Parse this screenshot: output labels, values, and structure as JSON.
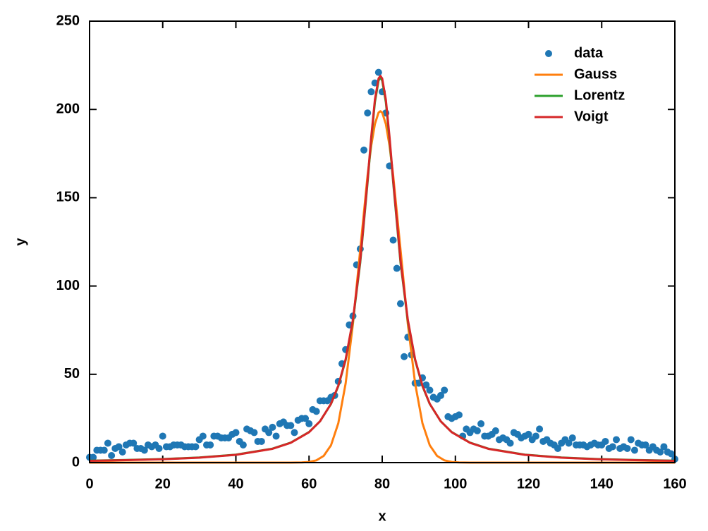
{
  "chart_data": {
    "type": "line",
    "xlabel": "x",
    "ylabel": "y",
    "xlim": [
      0,
      160
    ],
    "ylim": [
      0,
      250
    ],
    "xticks": [
      0,
      20,
      40,
      60,
      80,
      100,
      120,
      140,
      160
    ],
    "yticks": [
      0,
      50,
      100,
      150,
      200,
      250
    ],
    "legend": "upper right",
    "series": [
      {
        "name": "data",
        "type": "scatter",
        "color": "#1f77b4",
        "x": [
          0,
          1,
          2,
          3,
          4,
          5,
          6,
          7,
          8,
          9,
          10,
          11,
          12,
          13,
          14,
          15,
          16,
          17,
          18,
          19,
          20,
          21,
          22,
          23,
          24,
          25,
          26,
          27,
          28,
          29,
          30,
          31,
          32,
          33,
          34,
          35,
          36,
          37,
          38,
          39,
          40,
          41,
          42,
          43,
          44,
          45,
          46,
          47,
          48,
          49,
          50,
          51,
          52,
          53,
          54,
          55,
          56,
          57,
          58,
          59,
          60,
          61,
          62,
          63,
          64,
          65,
          66,
          67,
          68,
          69,
          70,
          71,
          72,
          73,
          74,
          75,
          76,
          77,
          78,
          79,
          80,
          81,
          82,
          83,
          84,
          85,
          86,
          87,
          88,
          89,
          90,
          91,
          92,
          93,
          94,
          95,
          96,
          97,
          98,
          99,
          100,
          101,
          102,
          103,
          104,
          105,
          106,
          107,
          108,
          109,
          110,
          111,
          112,
          113,
          114,
          115,
          116,
          117,
          118,
          119,
          120,
          121,
          122,
          123,
          124,
          125,
          126,
          127,
          128,
          129,
          130,
          131,
          132,
          133,
          134,
          135,
          136,
          137,
          138,
          139,
          140,
          141,
          142,
          143,
          144,
          145,
          146,
          147,
          148,
          149,
          150,
          151,
          152,
          153,
          154,
          155,
          156,
          157,
          158,
          159,
          160
        ],
        "values": [
          3,
          3,
          7,
          7,
          7,
          11,
          4,
          8,
          9,
          6,
          10,
          11,
          11,
          8,
          8,
          7,
          10,
          9,
          10,
          8,
          15,
          9,
          9,
          10,
          10,
          10,
          9,
          9,
          9,
          9,
          13,
          15,
          10,
          10,
          15,
          15,
          14,
          14,
          14,
          16,
          17,
          12,
          10,
          19,
          18,
          17,
          12,
          12,
          19,
          17,
          20,
          15,
          22,
          23,
          21,
          21,
          17,
          24,
          25,
          25,
          22,
          30,
          29,
          35,
          35,
          35,
          37,
          38,
          46,
          56,
          64,
          78,
          83,
          112,
          121,
          177,
          198,
          210,
          215,
          221,
          210,
          198,
          168,
          126,
          110,
          90,
          60,
          71,
          61,
          45,
          45,
          48,
          44,
          41,
          37,
          36,
          38,
          41,
          26,
          25,
          26,
          27,
          15,
          19,
          17,
          19,
          18,
          22,
          15,
          15,
          16,
          18,
          13,
          14,
          13,
          11,
          17,
          16,
          14,
          15,
          16,
          13,
          15,
          19,
          12,
          13,
          11,
          10,
          8,
          11,
          13,
          11,
          14,
          10,
          10,
          10,
          9,
          10,
          11,
          10,
          10,
          12,
          8,
          9,
          13,
          8,
          9,
          8,
          13,
          7,
          11,
          10,
          10,
          7,
          9,
          7,
          6,
          9,
          6,
          5,
          2
        ]
      },
      {
        "name": "Gauss",
        "color": "#ff7f0e",
        "x": [
          0,
          50,
          55,
          58,
          60,
          62,
          64,
          66,
          68,
          70,
          72,
          74,
          76,
          77,
          78,
          79,
          79.5,
          80,
          81,
          82,
          83,
          85,
          87,
          89,
          91,
          93,
          95,
          97,
          99,
          101,
          104,
          109,
          160
        ],
        "values": [
          0,
          0,
          0.01,
          0.1,
          0.37,
          1.26,
          3.8,
          9.8,
          22.3,
          44.8,
          78.6,
          120.7,
          162.6,
          179.5,
          191.7,
          198.2,
          199,
          198.2,
          191.7,
          179.5,
          162.6,
          120.7,
          78.6,
          44.8,
          22.3,
          9.8,
          3.8,
          1.26,
          0.37,
          0.1,
          0.01,
          0,
          0
        ]
      },
      {
        "name": "Lorentz",
        "color": "#2ca02c",
        "x": [
          0,
          10,
          20,
          30,
          40,
          50,
          55,
          60,
          63,
          66,
          68,
          70,
          72,
          74,
          76,
          77,
          78,
          79,
          79.5,
          80,
          81,
          82,
          83,
          85,
          87,
          89,
          91,
          93,
          96,
          99,
          104,
          109,
          119,
          129,
          139,
          149,
          160
        ],
        "values": [
          1.1,
          1.5,
          2.0,
          2.9,
          4.5,
          7.9,
          11.3,
          17.3,
          23.4,
          33.2,
          43.3,
          58.0,
          80.2,
          113.3,
          158.6,
          183.0,
          204.0,
          216.3,
          218,
          216.3,
          204.0,
          183.0,
          158.6,
          113.3,
          80.2,
          58.0,
          43.3,
          33.2,
          23.4,
          17.3,
          11.3,
          7.9,
          4.5,
          2.9,
          2.0,
          1.5,
          1.1
        ]
      },
      {
        "name": "Voigt",
        "color": "#d62728",
        "x": [
          0,
          10,
          20,
          30,
          40,
          50,
          55,
          60,
          63,
          66,
          68,
          70,
          72,
          74,
          76,
          77,
          78,
          79,
          79.5,
          80,
          81,
          82,
          83,
          85,
          87,
          89,
          91,
          93,
          96,
          99,
          104,
          109,
          119,
          129,
          139,
          149,
          160
        ],
        "values": [
          1.0,
          1.4,
          1.9,
          2.8,
          4.4,
          7.8,
          11.2,
          17.2,
          23.4,
          33.3,
          43.6,
          58.5,
          81.0,
          114.5,
          160.0,
          184.5,
          205.5,
          217.5,
          219,
          217.5,
          205.5,
          184.5,
          160.0,
          114.5,
          81.0,
          58.5,
          43.6,
          33.3,
          23.4,
          17.2,
          11.2,
          7.8,
          4.4,
          2.8,
          1.9,
          1.4,
          1.0
        ]
      }
    ]
  }
}
